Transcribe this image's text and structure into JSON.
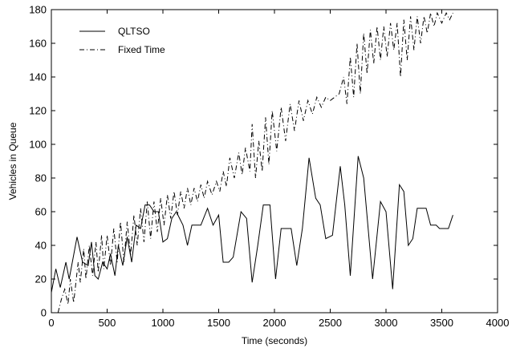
{
  "chart_data": {
    "type": "line",
    "title": "",
    "xlabel": "Time (seconds)",
    "ylabel": "Vehicles in Queue",
    "xlim": [
      0,
      4000
    ],
    "ylim": [
      0,
      180
    ],
    "xticks": [
      0,
      500,
      1000,
      1500,
      2000,
      2500,
      3000,
      3500,
      4000
    ],
    "yticks": [
      0,
      20,
      40,
      60,
      80,
      100,
      120,
      140,
      160,
      180
    ],
    "grid": false,
    "legend_position": "top-left",
    "series": [
      {
        "name": "QLTSO",
        "style": "solid",
        "points": [
          [
            0,
            12
          ],
          [
            40,
            26
          ],
          [
            80,
            15
          ],
          [
            130,
            30
          ],
          [
            160,
            20
          ],
          [
            230,
            45
          ],
          [
            280,
            30
          ],
          [
            330,
            28
          ],
          [
            360,
            42
          ],
          [
            390,
            22
          ],
          [
            420,
            20
          ],
          [
            460,
            30
          ],
          [
            500,
            26
          ],
          [
            530,
            35
          ],
          [
            570,
            22
          ],
          [
            600,
            40
          ],
          [
            640,
            28
          ],
          [
            680,
            45
          ],
          [
            720,
            30
          ],
          [
            760,
            52
          ],
          [
            800,
            50
          ],
          [
            840,
            64
          ],
          [
            880,
            64
          ],
          [
            920,
            60
          ],
          [
            960,
            60
          ],
          [
            1000,
            42
          ],
          [
            1040,
            44
          ],
          [
            1080,
            56
          ],
          [
            1120,
            60
          ],
          [
            1150,
            56
          ],
          [
            1180,
            52
          ],
          [
            1220,
            40
          ],
          [
            1260,
            52
          ],
          [
            1340,
            52
          ],
          [
            1400,
            62
          ],
          [
            1450,
            52
          ],
          [
            1500,
            58
          ],
          [
            1540,
            30
          ],
          [
            1590,
            30
          ],
          [
            1630,
            33
          ],
          [
            1700,
            60
          ],
          [
            1750,
            56
          ],
          [
            1800,
            18
          ],
          [
            1850,
            40
          ],
          [
            1900,
            64
          ],
          [
            1960,
            64
          ],
          [
            2010,
            20
          ],
          [
            2060,
            50
          ],
          [
            2150,
            50
          ],
          [
            2200,
            28
          ],
          [
            2250,
            50
          ],
          [
            2310,
            92
          ],
          [
            2370,
            68
          ],
          [
            2410,
            64
          ],
          [
            2460,
            44
          ],
          [
            2520,
            46
          ],
          [
            2590,
            87
          ],
          [
            2630,
            64
          ],
          [
            2680,
            22
          ],
          [
            2750,
            93
          ],
          [
            2800,
            80
          ],
          [
            2880,
            20
          ],
          [
            2950,
            66
          ],
          [
            3000,
            60
          ],
          [
            3060,
            14
          ],
          [
            3120,
            76
          ],
          [
            3160,
            72
          ],
          [
            3200,
            40
          ],
          [
            3240,
            44
          ],
          [
            3280,
            62
          ],
          [
            3360,
            62
          ],
          [
            3400,
            52
          ],
          [
            3450,
            52
          ],
          [
            3480,
            50
          ],
          [
            3560,
            50
          ],
          [
            3600,
            58
          ]
        ]
      },
      {
        "name": "Fixed Time",
        "style": "dash-dot",
        "points": [
          [
            60,
            0
          ],
          [
            90,
            8
          ],
          [
            120,
            14
          ],
          [
            150,
            5
          ],
          [
            170,
            20
          ],
          [
            200,
            6
          ],
          [
            240,
            30
          ],
          [
            260,
            18
          ],
          [
            290,
            38
          ],
          [
            310,
            20
          ],
          [
            340,
            40
          ],
          [
            370,
            22
          ],
          [
            400,
            42
          ],
          [
            420,
            24
          ],
          [
            450,
            46
          ],
          [
            470,
            26
          ],
          [
            500,
            46
          ],
          [
            530,
            28
          ],
          [
            560,
            50
          ],
          [
            590,
            30
          ],
          [
            620,
            54
          ],
          [
            650,
            30
          ],
          [
            680,
            54
          ],
          [
            710,
            34
          ],
          [
            740,
            58
          ],
          [
            770,
            40
          ],
          [
            800,
            62
          ],
          [
            830,
            42
          ],
          [
            860,
            66
          ],
          [
            890,
            44
          ],
          [
            920,
            66
          ],
          [
            950,
            48
          ],
          [
            980,
            68
          ],
          [
            1010,
            52
          ],
          [
            1040,
            70
          ],
          [
            1070,
            56
          ],
          [
            1100,
            72
          ],
          [
            1130,
            58
          ],
          [
            1160,
            72
          ],
          [
            1190,
            62
          ],
          [
            1220,
            74
          ],
          [
            1250,
            64
          ],
          [
            1280,
            74
          ],
          [
            1310,
            66
          ],
          [
            1340,
            76
          ],
          [
            1370,
            68
          ],
          [
            1400,
            78
          ],
          [
            1440,
            70
          ],
          [
            1480,
            78
          ],
          [
            1510,
            72
          ],
          [
            1540,
            84
          ],
          [
            1570,
            75
          ],
          [
            1600,
            92
          ],
          [
            1640,
            80
          ],
          [
            1680,
            95
          ],
          [
            1710,
            82
          ],
          [
            1740,
            98
          ],
          [
            1780,
            84
          ],
          [
            1800,
            112
          ],
          [
            1830,
            80
          ],
          [
            1860,
            102
          ],
          [
            1890,
            84
          ],
          [
            1920,
            116
          ],
          [
            1950,
            88
          ],
          [
            1980,
            120
          ],
          [
            2020,
            96
          ],
          [
            2060,
            122
          ],
          [
            2100,
            102
          ],
          [
            2140,
            124
          ],
          [
            2180,
            108
          ],
          [
            2220,
            126
          ],
          [
            2260,
            114
          ],
          [
            2300,
            126
          ],
          [
            2340,
            118
          ],
          [
            2380,
            128
          ],
          [
            2420,
            122
          ],
          [
            2460,
            128
          ],
          [
            2500,
            126
          ],
          [
            2540,
            128
          ],
          [
            2580,
            130
          ],
          [
            2620,
            140
          ],
          [
            2650,
            124
          ],
          [
            2680,
            152
          ],
          [
            2710,
            128
          ],
          [
            2740,
            160
          ],
          [
            2770,
            130
          ],
          [
            2800,
            166
          ],
          [
            2830,
            142
          ],
          [
            2860,
            168
          ],
          [
            2890,
            148
          ],
          [
            2920,
            170
          ],
          [
            2950,
            150
          ],
          [
            2980,
            170
          ],
          [
            3010,
            152
          ],
          [
            3040,
            172
          ],
          [
            3070,
            156
          ],
          [
            3100,
            172
          ],
          [
            3130,
            140
          ],
          [
            3160,
            174
          ],
          [
            3190,
            150
          ],
          [
            3220,
            176
          ],
          [
            3250,
            156
          ],
          [
            3280,
            176
          ],
          [
            3310,
            160
          ],
          [
            3340,
            176
          ],
          [
            3370,
            166
          ],
          [
            3400,
            178
          ],
          [
            3430,
            170
          ],
          [
            3460,
            178
          ],
          [
            3500,
            172
          ],
          [
            3540,
            178
          ],
          [
            3570,
            174
          ],
          [
            3600,
            178
          ]
        ]
      }
    ]
  }
}
